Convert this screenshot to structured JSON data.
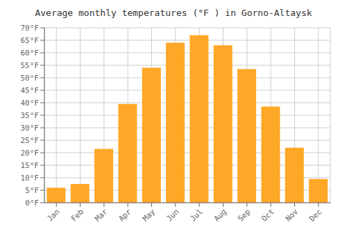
{
  "chart_data": {
    "type": "bar",
    "title": "Average monthly temperatures (°F ) in Gorno-Altaysk",
    "categories": [
      "Jan",
      "Feb",
      "Mar",
      "Apr",
      "May",
      "Jun",
      "Jul",
      "Aug",
      "Sep",
      "Oct",
      "Nov",
      "Dec"
    ],
    "values": [
      6,
      7.5,
      21.5,
      39.5,
      54,
      64,
      67,
      63,
      53.5,
      38.5,
      22,
      9.5
    ],
    "color": "#FFA726",
    "ylim": [
      0,
      70
    ],
    "yticks": [
      {
        "value": 0,
        "label": "0°F"
      },
      {
        "value": 5,
        "label": "5°F"
      },
      {
        "value": 10,
        "label": "10°F"
      },
      {
        "value": 15,
        "label": "15°F"
      },
      {
        "value": 20,
        "label": "20°F"
      },
      {
        "value": 25,
        "label": "25°F"
      },
      {
        "value": 30,
        "label": "30°F"
      },
      {
        "value": 35,
        "label": "35°F"
      },
      {
        "value": 40,
        "label": "40°F"
      },
      {
        "value": 45,
        "label": "45°F"
      },
      {
        "value": 50,
        "label": "50°F"
      },
      {
        "value": 55,
        "label": "55°F"
      },
      {
        "value": 60,
        "label": "60°F"
      },
      {
        "value": 65,
        "label": "65°F"
      },
      {
        "value": 70,
        "label": "70°F"
      }
    ],
    "grid": true
  }
}
